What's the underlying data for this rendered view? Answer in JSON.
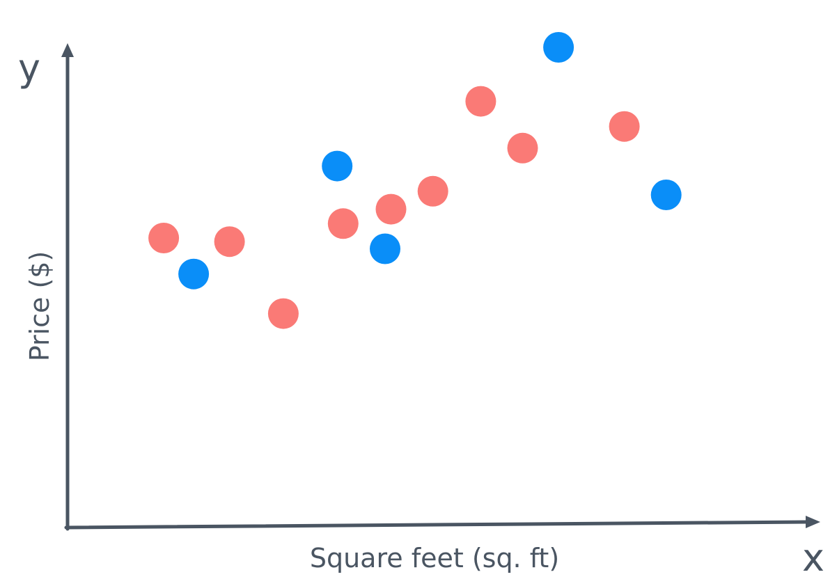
{
  "chart_data": {
    "type": "scatter",
    "xlabel": "Square feet (sq. ft)",
    "ylabel": "Price ($)",
    "x_axis_letter": "x",
    "y_axis_letter": "y",
    "grid": false,
    "series": [
      {
        "color": "#fa7a76",
        "points": [
          {
            "x": 0.07,
            "y": 0.47
          },
          {
            "x": 0.18,
            "y": 0.46
          },
          {
            "x": 0.27,
            "y": 0.26
          },
          {
            "x": 0.37,
            "y": 0.51
          },
          {
            "x": 0.45,
            "y": 0.55
          },
          {
            "x": 0.52,
            "y": 0.6
          },
          {
            "x": 0.6,
            "y": 0.85
          },
          {
            "x": 0.67,
            "y": 0.72
          },
          {
            "x": 0.84,
            "y": 0.78
          }
        ]
      },
      {
        "color": "#0a8ef8",
        "points": [
          {
            "x": 0.12,
            "y": 0.37
          },
          {
            "x": 0.36,
            "y": 0.67
          },
          {
            "x": 0.44,
            "y": 0.44
          },
          {
            "x": 0.73,
            "y": 1.0
          },
          {
            "x": 0.91,
            "y": 0.59
          }
        ]
      }
    ]
  }
}
